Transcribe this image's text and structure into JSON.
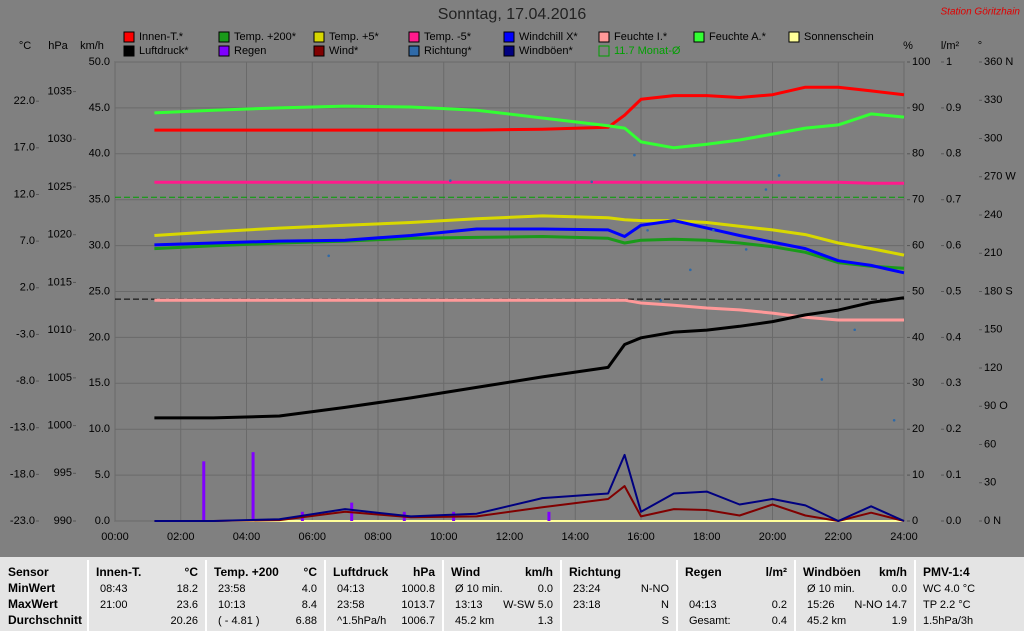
{
  "chart_data": {
    "type": "line",
    "title": "Sonntag, 17.04.2016",
    "annotation": "Station Göritzhain",
    "grid": true,
    "xlim": [
      0,
      24
    ],
    "xticks": [
      {
        "value": 0,
        "label": "00:00"
      },
      {
        "value": 2,
        "label": "02:00"
      },
      {
        "value": 4,
        "label": "04:00"
      },
      {
        "value": 6,
        "label": "06:00"
      },
      {
        "value": 8,
        "label": "08:00"
      },
      {
        "value": 10,
        "label": "10:00"
      },
      {
        "value": 12,
        "label": "12:00"
      },
      {
        "value": 14,
        "label": "14:00"
      },
      {
        "value": 16,
        "label": "16:00"
      },
      {
        "value": 18,
        "label": "18:00"
      },
      {
        "value": 20,
        "label": "20:00"
      },
      {
        "value": 22,
        "label": "22:00"
      },
      {
        "value": 24,
        "label": "24:00"
      }
    ],
    "axes": [
      {
        "label": "°C",
        "lim": [
          -23,
          26.2
        ],
        "ticks": [
          {
            "value": 22,
            "label": "22.0"
          },
          {
            "value": 17,
            "label": "17.0"
          },
          {
            "value": 12,
            "label": "12.0"
          },
          {
            "value": 7,
            "label": "7.0"
          },
          {
            "value": 2,
            "label": "2.0"
          },
          {
            "value": -3,
            "label": "-3.0"
          },
          {
            "value": -8,
            "label": "-8.0"
          },
          {
            "value": -13,
            "label": "-13.0"
          },
          {
            "value": -18,
            "label": "-18.0"
          },
          {
            "value": -23,
            "label": "-23.0"
          }
        ]
      },
      {
        "label": "hPa",
        "lim": [
          990,
          1038.1
        ],
        "ticks": [
          1035,
          1030,
          1025,
          1020,
          1015,
          1010,
          1005,
          1000,
          995,
          990
        ]
      },
      {
        "label": "km/h",
        "lim": [
          0,
          50
        ],
        "ticks": [
          {
            "value": 50,
            "label": "50.0"
          },
          {
            "value": 45,
            "label": "45.0"
          },
          {
            "value": 40,
            "label": "40.0"
          },
          {
            "value": 35,
            "label": "35.0"
          },
          {
            "value": 30,
            "label": "30.0"
          },
          {
            "value": 25,
            "label": "25.0"
          },
          {
            "value": 20,
            "label": "20.0"
          },
          {
            "value": 15,
            "label": "15.0"
          },
          {
            "value": 10,
            "label": "10.0"
          },
          {
            "value": 5,
            "label": "5.0"
          },
          {
            "value": 0,
            "label": "0.0"
          }
        ]
      },
      {
        "label": "%",
        "lim": [
          0,
          100
        ],
        "ticks": [
          100,
          90,
          80,
          70,
          60,
          50,
          40,
          30,
          20,
          10,
          0
        ]
      },
      {
        "label": "l/m²",
        "lim": [
          0,
          1
        ],
        "ticks": [
          1,
          0.9,
          0.8,
          0.7,
          0.6,
          0.5,
          0.4,
          0.3,
          0.2,
          0.1,
          {
            "value": 0,
            "label": "0.0"
          }
        ]
      },
      {
        "label": "°",
        "lim": [
          0,
          360
        ],
        "ticks": [
          {
            "value": 360,
            "label": "360 N"
          },
          330,
          300,
          {
            "value": 270,
            "label": "270 W"
          },
          240,
          210,
          {
            "value": 180,
            "label": "180 S"
          },
          150,
          120,
          {
            "value": 90,
            "label": "90 O"
          },
          60,
          30,
          {
            "value": 0,
            "label": "0  N"
          }
        ]
      }
    ],
    "x": [
      1.2,
      3,
      5,
      7,
      9,
      11,
      13,
      15,
      15.5,
      16,
      17,
      18,
      19,
      20,
      21,
      22,
      23,
      24
    ],
    "series": [
      {
        "name": "Innen-T.*",
        "type": "line",
        "axis": 0,
        "color": "#ff0000",
        "values": [
          18.9,
          18.9,
          18.9,
          18.9,
          18.9,
          18.9,
          19.0,
          19.2,
          20.5,
          22.2,
          22.6,
          22.6,
          22.4,
          22.7,
          23.5,
          23.5,
          23.1,
          22.7
        ]
      },
      {
        "name": "Temp. +200*",
        "type": "line",
        "axis": 0,
        "color": "#1a9a1a",
        "values": [
          6.2,
          6.5,
          6.8,
          7.0,
          7.3,
          7.4,
          7.5,
          7.3,
          6.8,
          7.1,
          7.2,
          7.1,
          6.8,
          6.4,
          5.8,
          4.7,
          4.3,
          4.1
        ]
      },
      {
        "name": "Temp. +5*",
        "type": "line",
        "axis": 0,
        "color": "#d8d800",
        "values": [
          7.6,
          8.0,
          8.4,
          8.7,
          9.0,
          9.4,
          9.7,
          9.5,
          9.3,
          9.2,
          9.2,
          9.0,
          8.6,
          8.2,
          7.7,
          6.8,
          6.2,
          5.5
        ]
      },
      {
        "name": "Temp. -5*",
        "type": "line",
        "axis": 0,
        "color": "#ff1a8c",
        "values": [
          13.3,
          13.3,
          13.3,
          13.3,
          13.3,
          13.3,
          13.3,
          13.3,
          13.3,
          13.3,
          13.3,
          13.3,
          13.3,
          13.3,
          13.3,
          13.3,
          13.2,
          13.2
        ]
      },
      {
        "name": "Windchill X*",
        "type": "line",
        "axis": 0,
        "color": "#0000ff",
        "values": [
          6.6,
          6.8,
          7.0,
          7.1,
          7.6,
          8.3,
          8.3,
          8.2,
          7.5,
          8.7,
          9.2,
          8.4,
          7.6,
          6.9,
          6.2,
          4.9,
          4.4,
          3.6
        ]
      },
      {
        "name": "Feuchte I.*",
        "type": "line",
        "axis": 3,
        "color": "#ff9999",
        "values": [
          48.1,
          48.1,
          48.1,
          48.1,
          48.1,
          48.1,
          48.1,
          48.1,
          48.1,
          47.5,
          47.0,
          46.4,
          46.0,
          45.3,
          44.4,
          43.8,
          43.8,
          43.8
        ]
      },
      {
        "name": "Feuchte A.*",
        "type": "line",
        "axis": 3,
        "color": "#33ff33",
        "values": [
          88.9,
          89.5,
          90.0,
          90.4,
          90.2,
          89.5,
          87.8,
          86.1,
          85.6,
          82.6,
          81.3,
          82.1,
          83.0,
          84.3,
          85.6,
          86.3,
          88.7,
          88.0
        ]
      },
      {
        "name": "Sonnenschein",
        "type": "line",
        "axis": 2,
        "color": "#ffff99",
        "values": [
          0,
          0,
          0,
          0,
          0,
          0,
          0,
          0,
          0,
          0,
          0,
          0,
          0,
          0,
          0,
          0,
          0,
          0
        ]
      },
      {
        "name": "Luftdruck*",
        "type": "line",
        "axis": 1,
        "color": "#000000",
        "values": [
          1000.8,
          1000.8,
          1001.0,
          1001.9,
          1002.9,
          1004.0,
          1005.1,
          1006.1,
          1008.5,
          1009.2,
          1009.8,
          1010.0,
          1010.4,
          1010.9,
          1011.6,
          1012.1,
          1012.9,
          1013.4
        ]
      },
      {
        "name": "Regen",
        "type": "bar",
        "axis": 4,
        "color": "#8000ff",
        "x": [
          2.7,
          4.2,
          5.7,
          7.2,
          8.8,
          10.3,
          13.2
        ],
        "values": [
          0.13,
          0.15,
          0.02,
          0.04,
          0.02,
          0.02,
          0.02
        ]
      },
      {
        "name": "Wind*",
        "type": "line",
        "axis": 2,
        "color": "#800000",
        "values": [
          0,
          0,
          0.1,
          1.0,
          0.4,
          0.5,
          1.5,
          2.4,
          3.8,
          0.5,
          1.3,
          1.2,
          0.6,
          1.8,
          0.6,
          0,
          0.9,
          0
        ]
      },
      {
        "name": "Richtung*",
        "type": "scatter",
        "axis": 5,
        "color": "#2f6aa8",
        "x": [
          6.5,
          10.2,
          14.5,
          15.8,
          16.2,
          16.6,
          17.5,
          18.2,
          19.2,
          19.8,
          20.2,
          21.5,
          22.5,
          23.7
        ],
        "values": [
          208,
          267,
          266,
          287,
          228,
          173,
          197,
          228,
          213,
          260,
          271,
          111,
          150,
          79
        ]
      },
      {
        "name": "Windböen*",
        "type": "line",
        "axis": 2,
        "color": "#000080",
        "values": [
          0,
          0,
          0.2,
          1.3,
          0.5,
          0.8,
          2.5,
          3.0,
          7.2,
          1.0,
          3.0,
          3.2,
          1.8,
          2.4,
          1.7,
          0,
          1.6,
          0
        ]
      }
    ],
    "reference_lines": [
      {
        "label": "11.7 Monat-Ø",
        "axis": 0,
        "value": 11.7,
        "color": "#00a000"
      },
      {
        "axis": 1,
        "value": 1013.25,
        "color": "#000000"
      }
    ],
    "table": {
      "groups": [
        {
          "title": "Sensor",
          "rows": [
            [
              "MinWert"
            ],
            [
              "MaxWert"
            ],
            [
              "Durchschnitt"
            ]
          ]
        },
        {
          "title": "Innen-T.",
          "unit": "°C",
          "rows": [
            [
              "08:43",
              "18.2"
            ],
            [
              "21:00",
              "23.6"
            ],
            [
              null,
              "20.26"
            ]
          ]
        },
        {
          "title": "Temp. +200",
          "unit": "°C",
          "rows": [
            [
              "23:58",
              "4.0"
            ],
            [
              "10:13",
              "8.4"
            ],
            [
              "( - 4.81 )",
              "6.88"
            ]
          ]
        },
        {
          "title": "Luftdruck",
          "unit": "hPa",
          "rows": [
            [
              "04:13",
              "1000.8"
            ],
            [
              "23:58",
              "1013.7"
            ],
            [
              "^1.5hPa/h",
              "1006.7"
            ]
          ]
        },
        {
          "title": "Wind",
          "unit": "km/h",
          "rows": [
            [
              "Ø 10 min.",
              "0.0"
            ],
            [
              "13:13",
              "W-SW 5.0"
            ],
            [
              "45.2 km",
              "1.3"
            ]
          ]
        },
        {
          "title": "Richtung",
          "rows": [
            [
              "23:24",
              "N-NO"
            ],
            [
              "23:18",
              "N"
            ],
            [
              null,
              "S"
            ]
          ]
        },
        {
          "title": "Regen",
          "unit": "l/m²",
          "rows": [
            [
              null,
              null
            ],
            [
              "04:13",
              "0.2"
            ],
            [
              "Gesamt:",
              "0.4"
            ]
          ]
        },
        {
          "title": "Windböen",
          "unit": "km/h",
          "rows": [
            [
              "Ø 10 min.",
              "0.0"
            ],
            [
              "15:26",
              "N-NO 14.7"
            ],
            [
              "45.2 km",
              "1.9"
            ]
          ]
        },
        {
          "title": "PMV-1:4",
          "rows": [
            [
              "WC 4.0 °C"
            ],
            [
              "TP 2.2 °C"
            ],
            [
              "1.5hPa/3h"
            ]
          ]
        }
      ]
    }
  }
}
